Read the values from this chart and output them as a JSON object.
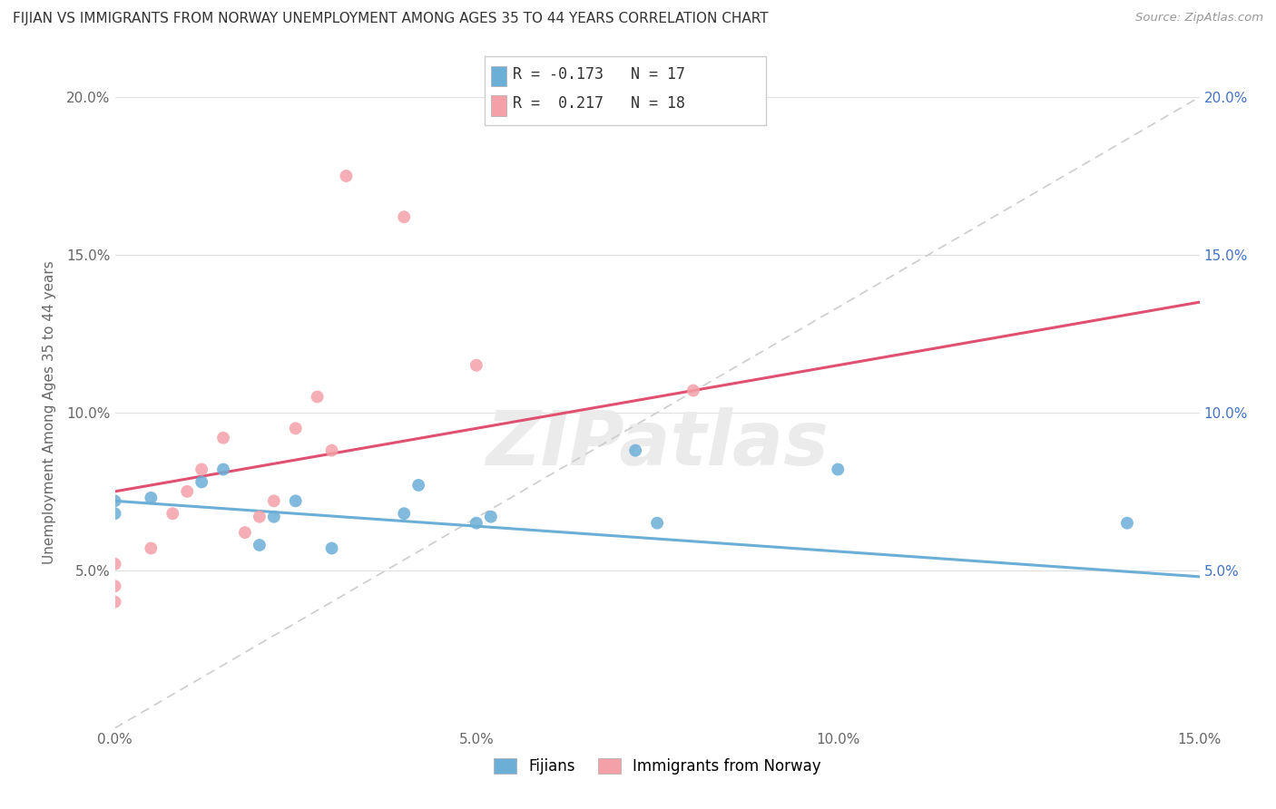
{
  "title": "FIJIAN VS IMMIGRANTS FROM NORWAY UNEMPLOYMENT AMONG AGES 35 TO 44 YEARS CORRELATION CHART",
  "source": "Source: ZipAtlas.com",
  "ylabel": "Unemployment Among Ages 35 to 44 years",
  "xlim": [
    0.0,
    0.15
  ],
  "ylim": [
    0.0,
    0.2
  ],
  "xticks": [
    0.0,
    0.05,
    0.1,
    0.15
  ],
  "xticklabels": [
    "0.0%",
    "5.0%",
    "10.0%",
    "15.0%"
  ],
  "yticks_left": [
    0.0,
    0.05,
    0.1,
    0.15,
    0.2
  ],
  "yticklabels_left": [
    "",
    "5.0%",
    "10.0%",
    "15.0%",
    "20.0%"
  ],
  "yticks_right": [
    0.05,
    0.1,
    0.15,
    0.2
  ],
  "yticklabels_right": [
    "5.0%",
    "10.0%",
    "15.0%",
    "20.0%"
  ],
  "fijian_color": "#6baed6",
  "norway_color": "#f4a0a8",
  "norway_line_color": "#e05070",
  "fijian_R": -0.173,
  "fijian_N": 17,
  "norway_R": 0.217,
  "norway_N": 18,
  "fijian_scatter_x": [
    0.0,
    0.0,
    0.005,
    0.012,
    0.015,
    0.02,
    0.022,
    0.025,
    0.03,
    0.04,
    0.042,
    0.05,
    0.052,
    0.072,
    0.075,
    0.1,
    0.14
  ],
  "fijian_scatter_y": [
    0.068,
    0.072,
    0.073,
    0.078,
    0.082,
    0.058,
    0.067,
    0.072,
    0.057,
    0.068,
    0.077,
    0.065,
    0.067,
    0.088,
    0.065,
    0.082,
    0.065
  ],
  "norway_scatter_x": [
    0.0,
    0.0,
    0.0,
    0.005,
    0.008,
    0.01,
    0.012,
    0.015,
    0.018,
    0.02,
    0.022,
    0.025,
    0.028,
    0.03,
    0.032,
    0.04,
    0.05,
    0.08
  ],
  "norway_scatter_y": [
    0.04,
    0.045,
    0.052,
    0.057,
    0.068,
    0.075,
    0.082,
    0.092,
    0.062,
    0.067,
    0.072,
    0.095,
    0.105,
    0.088,
    0.175,
    0.162,
    0.115,
    0.107
  ],
  "fijian_line_x": [
    0.0,
    0.15
  ],
  "fijian_line_y": [
    0.072,
    0.048
  ],
  "norway_line_x": [
    0.0,
    0.15
  ],
  "norway_line_y": [
    0.075,
    0.135
  ],
  "trend_line_x": [
    0.0,
    0.15
  ],
  "trend_line_y": [
    0.0,
    0.2
  ],
  "background_color": "#ffffff",
  "watermark": "ZIPatlas",
  "legend_labels": [
    "Fijians",
    "Immigrants from Norway"
  ]
}
